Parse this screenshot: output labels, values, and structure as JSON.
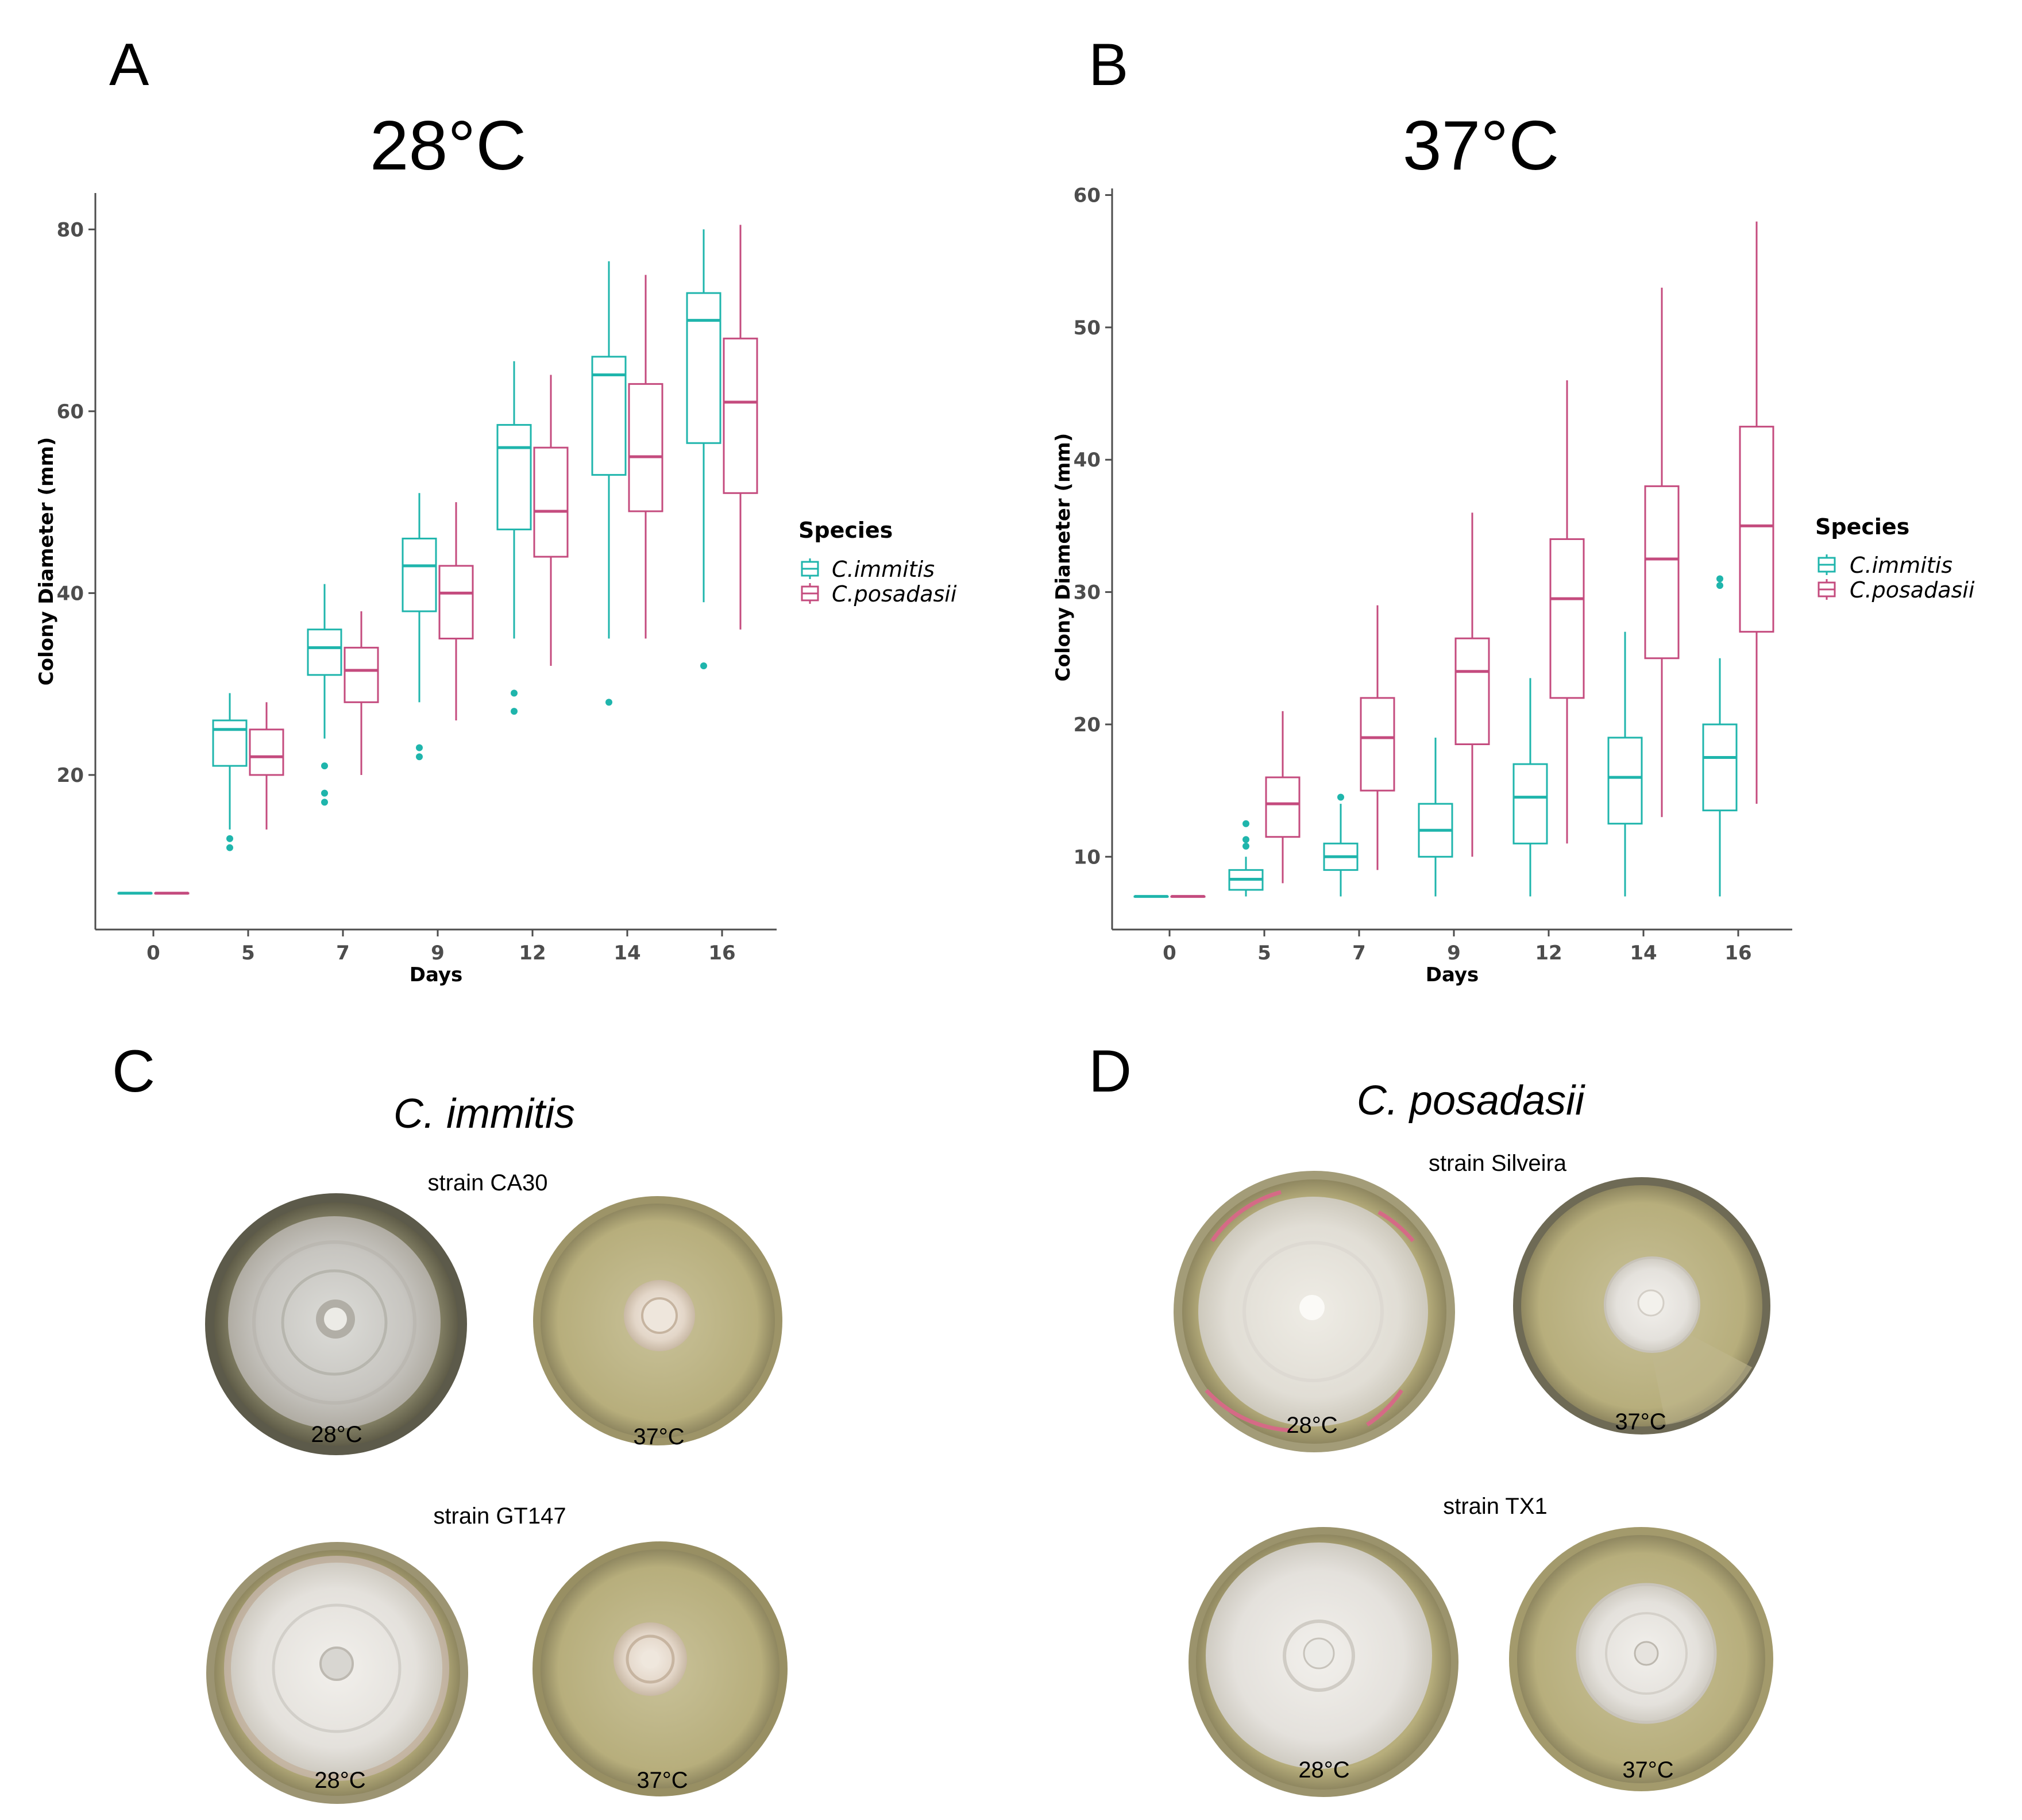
{
  "panels": {
    "a": "A",
    "b": "B",
    "c": "C",
    "d": "D"
  },
  "colors": {
    "immitis": "#1fb5ac",
    "posadasii": "#c44b7e",
    "axis": "#4d4d4d"
  },
  "legend": {
    "title": "Species",
    "items": [
      "C.immitis",
      "C.posadasii"
    ]
  },
  "chart_data": [
    {
      "type": "box",
      "title": "28°C",
      "xlabel": "Days",
      "ylabel": "Colony Diameter (mm)",
      "categories": [
        "0",
        "5",
        "7",
        "9",
        "12",
        "14",
        "16"
      ],
      "ylim": [
        3,
        84
      ],
      "yticks": [
        20,
        40,
        60,
        80
      ],
      "grid": false,
      "legend_position": "right",
      "series": [
        {
          "name": "C.immitis",
          "boxes": [
            {
              "min": 7,
              "q1": 7,
              "median": 7,
              "q3": 7,
              "max": 7,
              "outliers": []
            },
            {
              "min": 14,
              "q1": 21,
              "median": 25,
              "q3": 26,
              "max": 29,
              "outliers": [
                12,
                13
              ]
            },
            {
              "min": 24,
              "q1": 31,
              "median": 34,
              "q3": 36,
              "max": 41,
              "outliers": [
                17,
                18,
                21
              ]
            },
            {
              "min": 28,
              "q1": 38,
              "median": 43,
              "q3": 46,
              "max": 51,
              "outliers": [
                22,
                23
              ]
            },
            {
              "min": 35,
              "q1": 47,
              "median": 56,
              "q3": 58.5,
              "max": 65.5,
              "outliers": [
                27,
                29
              ]
            },
            {
              "min": 35,
              "q1": 53,
              "median": 64,
              "q3": 66,
              "max": 76.5,
              "outliers": [
                28
              ]
            },
            {
              "min": 39,
              "q1": 56.5,
              "median": 70,
              "q3": 73,
              "max": 80,
              "outliers": [
                32
              ]
            }
          ]
        },
        {
          "name": "C.posadasii",
          "boxes": [
            {
              "min": 7,
              "q1": 7,
              "median": 7,
              "q3": 7,
              "max": 7,
              "outliers": []
            },
            {
              "min": 14,
              "q1": 20,
              "median": 22,
              "q3": 25,
              "max": 28,
              "outliers": []
            },
            {
              "min": 20,
              "q1": 28,
              "median": 31.5,
              "q3": 34,
              "max": 38,
              "outliers": []
            },
            {
              "min": 26,
              "q1": 35,
              "median": 40,
              "q3": 43,
              "max": 50,
              "outliers": []
            },
            {
              "min": 32,
              "q1": 44,
              "median": 49,
              "q3": 56,
              "max": 64,
              "outliers": []
            },
            {
              "min": 35,
              "q1": 49,
              "median": 55,
              "q3": 63,
              "max": 75,
              "outliers": []
            },
            {
              "min": 36,
              "q1": 51,
              "median": 61,
              "q3": 68,
              "max": 80.5,
              "outliers": []
            }
          ]
        }
      ]
    },
    {
      "type": "box",
      "title": "37°C",
      "xlabel": "Days",
      "ylabel": "Colony Diameter (mm)",
      "categories": [
        "0",
        "5",
        "7",
        "9",
        "12",
        "14",
        "16"
      ],
      "ylim": [
        4.5,
        60.5
      ],
      "yticks": [
        10,
        20,
        30,
        40,
        50,
        60
      ],
      "grid": false,
      "legend_position": "right",
      "series": [
        {
          "name": "C.immitis",
          "boxes": [
            {
              "min": 7,
              "q1": 7,
              "median": 7,
              "q3": 7,
              "max": 7,
              "outliers": []
            },
            {
              "min": 7,
              "q1": 7.5,
              "median": 8.3,
              "q3": 9,
              "max": 10,
              "outliers": [
                10.8,
                11.3,
                12.5
              ]
            },
            {
              "min": 7,
              "q1": 9,
              "median": 10,
              "q3": 11,
              "max": 14,
              "outliers": [
                14.5
              ]
            },
            {
              "min": 7,
              "q1": 10,
              "median": 12,
              "q3": 14,
              "max": 19,
              "outliers": []
            },
            {
              "min": 7,
              "q1": 11,
              "median": 14.5,
              "q3": 17,
              "max": 23.5,
              "outliers": []
            },
            {
              "min": 7,
              "q1": 12.5,
              "median": 16,
              "q3": 19,
              "max": 27,
              "outliers": []
            },
            {
              "min": 7,
              "q1": 13.5,
              "median": 17.5,
              "q3": 20,
              "max": 25,
              "outliers": [
                30.5,
                31
              ]
            }
          ]
        },
        {
          "name": "C.posadasii",
          "boxes": [
            {
              "min": 7,
              "q1": 7,
              "median": 7,
              "q3": 7,
              "max": 7,
              "outliers": []
            },
            {
              "min": 8,
              "q1": 11.5,
              "median": 14,
              "q3": 16,
              "max": 21,
              "outliers": []
            },
            {
              "min": 9,
              "q1": 15,
              "median": 19,
              "q3": 22,
              "max": 29,
              "outliers": []
            },
            {
              "min": 10,
              "q1": 18.5,
              "median": 24,
              "q3": 26.5,
              "max": 36,
              "outliers": []
            },
            {
              "min": 11,
              "q1": 22,
              "median": 29.5,
              "q3": 34,
              "max": 46,
              "outliers": []
            },
            {
              "min": 13,
              "q1": 25,
              "median": 32.5,
              "q3": 38,
              "max": 53,
              "outliers": []
            },
            {
              "min": 14,
              "q1": 27,
              "median": 35,
              "q3": 42.5,
              "max": 58,
              "outliers": []
            }
          ]
        }
      ]
    }
  ],
  "photos": {
    "c": {
      "species": "C. immitis",
      "strains": [
        {
          "label": "strain CA30",
          "temps": [
            "28°C",
            "37°C"
          ]
        },
        {
          "label": "strain GT147",
          "temps": [
            "28°C",
            "37°C"
          ]
        }
      ]
    },
    "d": {
      "species": "C. posadasii",
      "strains": [
        {
          "label": "strain Silveira",
          "temps": [
            "28°C",
            "37°C"
          ]
        },
        {
          "label": "strain TX1",
          "temps": [
            "28°C",
            "37°C"
          ]
        }
      ]
    }
  }
}
